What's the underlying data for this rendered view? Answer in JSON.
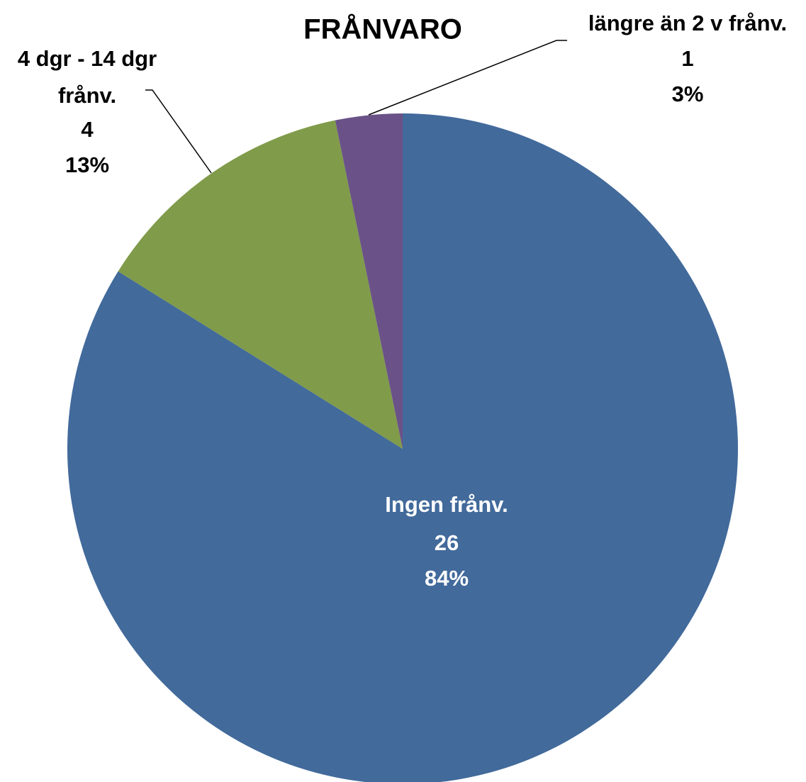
{
  "chart_data": {
    "type": "pie",
    "title": "FRÅNVARO",
    "categories": [
      "Ingen frånv.",
      "4 dgr - 14 dgr frånv.",
      "längre än 2 v frånv."
    ],
    "values": [
      26,
      4,
      1
    ],
    "percent_labels": [
      "84%",
      "13%",
      "3%"
    ],
    "colors": [
      "#426a9b",
      "#809b4a",
      "#6a5288"
    ]
  }
}
